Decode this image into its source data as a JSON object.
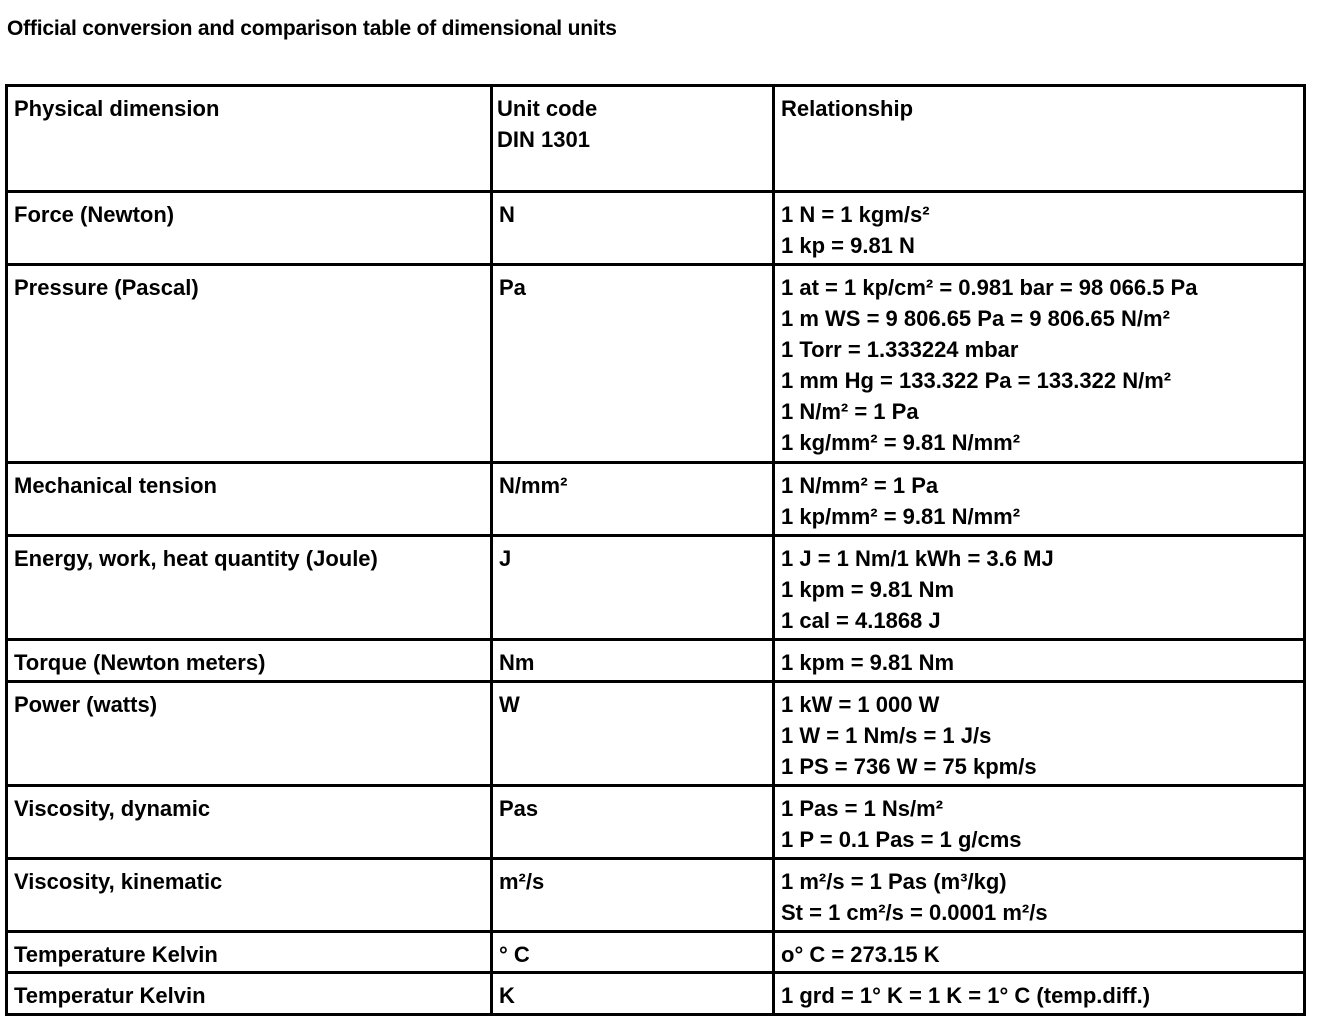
{
  "title": "Official conversion and comparison table of dimensional units",
  "table": {
    "headers": [
      "Physical dimension",
      "Unit code\nDIN 1301",
      "Relationship"
    ],
    "rows": [
      {
        "dimension": "Force (Newton)",
        "unit": "N",
        "relationship": [
          "1 N = 1 kgm/s²",
          "1 kp = 9.81 N"
        ]
      },
      {
        "dimension": "Pressure (Pascal)",
        "unit": "Pa",
        "relationship": [
          "1 at = 1 kp/cm² = 0.981 bar = 98 066.5 Pa",
          "1 m WS = 9 806.65 Pa = 9 806.65 N/m²",
          "1 Torr = 1.333224 mbar",
          "1 mm Hg = 133.322 Pa = 133.322 N/m²",
          "1 N/m² = 1 Pa",
          "1 kg/mm² = 9.81 N/mm²"
        ]
      },
      {
        "dimension": "Mechanical tension",
        "unit": "N/mm²",
        "relationship": [
          "1 N/mm² = 1 Pa",
          "1 kp/mm² = 9.81 N/mm²"
        ]
      },
      {
        "dimension": "Energy, work, heat quantity (Joule)",
        "unit": "J",
        "relationship": [
          "1 J = 1 Nm/1 kWh = 3.6 MJ",
          "1 kpm = 9.81 Nm",
          "1 cal = 4.1868 J"
        ]
      },
      {
        "dimension": "Torque (Newton meters)",
        "unit": "Nm",
        "relationship": [
          "1 kpm = 9.81 Nm"
        ]
      },
      {
        "dimension": "Power (watts)",
        "unit": "W",
        "relationship": [
          "1 kW = 1 000 W",
          "1 W = 1 Nm/s = 1 J/s",
          "1 PS = 736 W = 75 kpm/s"
        ]
      },
      {
        "dimension": "Viscosity, dynamic",
        "unit": "Pas",
        "relationship": [
          "1 Pas = 1 Ns/m²",
          "1 P = 0.1 Pas = 1 g/cms"
        ]
      },
      {
        "dimension": "Viscosity, kinematic",
        "unit": "m²/s",
        "relationship": [
          "1 m²/s = 1 Pas (m³/kg)",
          "St = 1 cm²/s = 0.0001 m²/s"
        ]
      },
      {
        "dimension": "Temperature Kelvin",
        "unit": "° C",
        "relationship": [
          "o° C = 273.15 K"
        ]
      },
      {
        "dimension": "Temperatur Kelvin",
        "unit": "K",
        "relationship": [
          "1 grd = 1° K = 1 K = 1° C (temp.diff.)"
        ]
      }
    ]
  }
}
